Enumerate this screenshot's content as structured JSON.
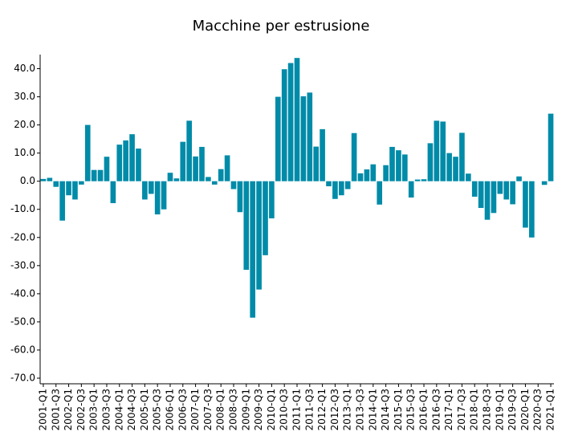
{
  "chart_data": {
    "type": "bar",
    "title": "Macchine per estrusione",
    "categories": [
      "2001-Q1",
      null,
      "2001-Q3",
      null,
      "2002-Q1",
      null,
      "2002-Q3",
      null,
      "2003-Q1",
      null,
      "2003-Q3",
      null,
      "2004-Q1",
      null,
      "2004-Q3",
      null,
      "2005-Q1",
      null,
      "2005-Q3",
      null,
      "2006-Q1",
      null,
      "2006-Q3",
      null,
      "2007-Q1",
      null,
      "2007-Q3",
      null,
      "2008-Q1",
      null,
      "2008-Q3",
      null,
      "2009-Q1",
      null,
      "2009-Q3",
      null,
      "2010-Q1",
      null,
      "2010-Q3",
      null,
      "2011-Q1",
      null,
      "2011-Q3",
      null,
      "2012-Q1",
      null,
      "2012-Q3",
      null,
      "2013-Q1",
      null,
      "2013-Q3",
      null,
      "2014-Q1",
      null,
      "2014-Q3",
      null,
      "2015-Q1",
      null,
      "2015-Q3",
      null,
      "2016-Q1",
      null,
      "2016-Q3",
      null,
      "2017-Q1",
      null,
      "2017-Q3",
      null,
      "2018-Q1",
      null,
      "2018-Q3",
      null,
      "2019-Q1",
      null,
      "2019-Q3",
      null,
      "2020-Q1",
      null,
      "2020-Q3",
      null,
      "2021-Q1"
    ],
    "values": [
      0.8,
      1.2,
      -2,
      -14,
      -5,
      -6.5,
      -1.2,
      20,
      4,
      4,
      8.7,
      -7.8,
      13,
      14.5,
      16.7,
      11.6,
      -6.5,
      -4.5,
      -11.8,
      -10,
      3,
      1,
      14,
      21.5,
      8.8,
      12.2,
      1.5,
      -1.2,
      4.3,
      9.2,
      -2.8,
      -11,
      -31.5,
      -48.5,
      -38.5,
      -26.3,
      -13.2,
      30,
      39.8,
      42,
      43.8,
      30.2,
      31.5,
      12.3,
      18.5,
      -1.8,
      -6.3,
      -5,
      -2.8,
      17.1,
      2.8,
      4.2,
      6,
      -8.3,
      5.7,
      12.2,
      11,
      9.5,
      -5.8,
      0.6,
      0.7,
      13.5,
      21.5,
      21.2,
      10,
      8.7,
      17.2,
      2.7,
      -5.5,
      -9.5,
      -13.7,
      -11.3,
      -4.5,
      -6.5,
      -8.2,
      1.7,
      -16.5,
      -20,
      0,
      -1.3,
      24
    ],
    "color": "#008ba8",
    "ylim": [
      -72,
      45
    ],
    "yticks": [
      {
        "value": -70,
        "label": "-70.0"
      },
      {
        "value": -60,
        "label": "-60.0"
      },
      {
        "value": -50,
        "label": "-50.0"
      },
      {
        "value": -40,
        "label": "-40.0"
      },
      {
        "value": -30,
        "label": "-30.0"
      },
      {
        "value": -20,
        "label": "-20.0"
      },
      {
        "value": -10,
        "label": "-10.0"
      },
      {
        "value": 0,
        "label": "0.0"
      },
      {
        "value": 10,
        "label": "10.0"
      },
      {
        "value": 20,
        "label": "20.0"
      },
      {
        "value": 30,
        "label": "30.0"
      },
      {
        "value": 40,
        "label": "40.0"
      }
    ],
    "grid": false
  }
}
